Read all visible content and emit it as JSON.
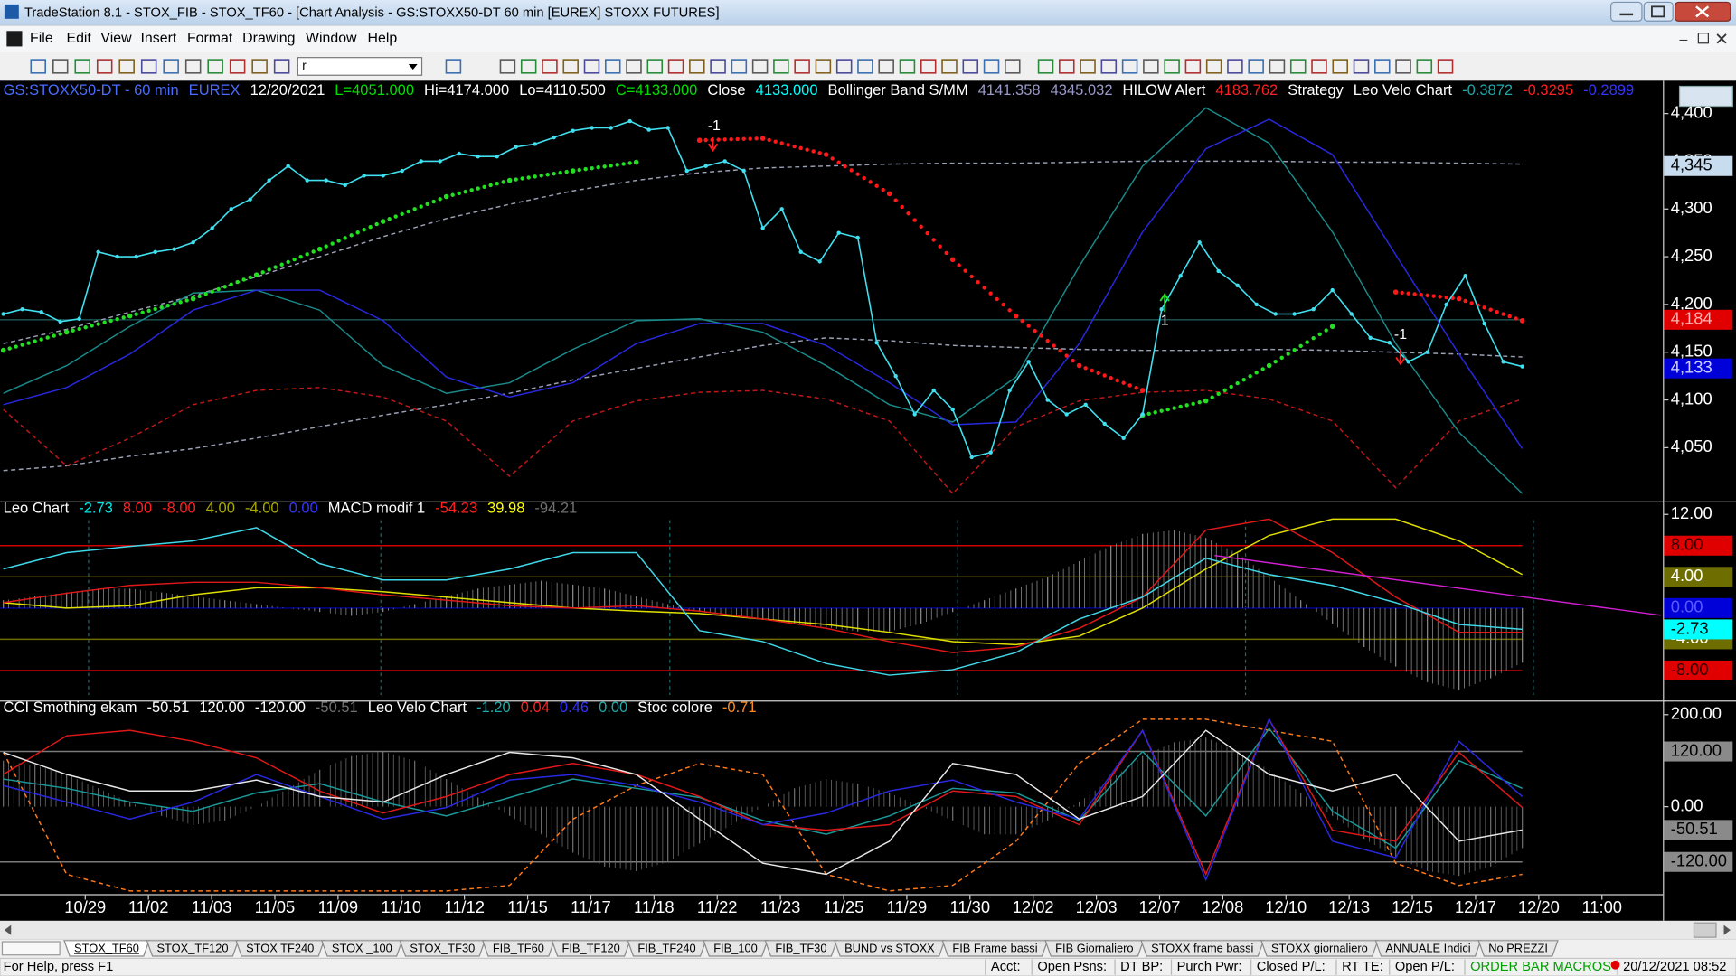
{
  "window": {
    "title": "TradeStation 8.1 - STOX_FIB - STOX_TF60 - [Chart Analysis - GS:STOXX50-DT  60 min  [EUREX] STOXX FUTURES]",
    "menu": [
      "File",
      "Edit",
      "View",
      "Insert",
      "Format",
      "Drawing",
      "Window",
      "Help"
    ],
    "symbol_box": "r"
  },
  "chart_data": [
    {
      "type": "line",
      "header": [
        {
          "text": "GS:STOXX50-DT - 60 min",
          "color": "#4a6cff"
        },
        {
          "text": "EUREX",
          "color": "#4a6cff"
        },
        {
          "text": "12/20/2021",
          "color": "#ffffff"
        },
        {
          "text": "L=4051.000",
          "color": "#00e000"
        },
        {
          "text": "Hi=4174.000",
          "color": "#ffffff"
        },
        {
          "text": "Lo=4110.500",
          "color": "#ffffff"
        },
        {
          "text": "C=4133.000",
          "color": "#00e000"
        },
        {
          "text": "Close",
          "color": "#ffffff"
        },
        {
          "text": "4133.000",
          "color": "#00ffff"
        },
        {
          "text": "Bollinger Band S/MM",
          "color": "#ffffff"
        },
        {
          "text": "4141.358",
          "color": "#9a9ac8"
        },
        {
          "text": "4345.032",
          "color": "#9a9ac8"
        },
        {
          "text": "HILOW Alert",
          "color": "#ffffff"
        },
        {
          "text": "4183.762",
          "color": "#ff2020"
        },
        {
          "text": "Strategy",
          "color": "#ffffff"
        },
        {
          "text": "Leo Velo Chart",
          "color": "#ffffff"
        },
        {
          "text": "-0.3872",
          "color": "#20a8a8"
        },
        {
          "text": "-0.3295",
          "color": "#ff2020"
        },
        {
          "text": "-0.2899",
          "color": "#3434ff"
        }
      ],
      "ylim": [
        3995,
        4432
      ],
      "yticks": [
        {
          "value": 4400,
          "label": "4,400"
        },
        {
          "value": 4350,
          "label": "4,350"
        },
        {
          "value": 4300,
          "label": "4,300"
        },
        {
          "value": 4250,
          "label": "4,250"
        },
        {
          "value": 4200,
          "label": "4,200"
        },
        {
          "value": 4150,
          "label": "4,150"
        },
        {
          "value": 4100,
          "label": "4,100"
        },
        {
          "value": 4050,
          "label": "4,050"
        }
      ],
      "markers": [
        {
          "value": 4345,
          "label": "4,345",
          "color": "#c8dcf0",
          "text_color": "#000000"
        },
        {
          "value": 4184,
          "label": "4,184",
          "color": "#e00000",
          "text_color": "#ffb0b0",
          "line_color": "#1e5a5a"
        },
        {
          "value": 4133,
          "label": "4,133",
          "color": "#0000d8",
          "text_color": "#d0d0ff"
        }
      ],
      "annotations": [
        "-1",
        "1",
        "-1"
      ],
      "series": [
        {
          "color": "#9aa0b4",
          "style": "dashed",
          "values": [
            4159,
            4174,
            4192,
            4209,
            4229,
            4250,
            4271,
            4290,
            4305,
            4319,
            4330,
            4338,
            4343,
            4345,
            4347,
            4348,
            4348,
            4349,
            4350,
            4350,
            4350,
            4349,
            4349,
            4348,
            4347
          ]
        },
        {
          "color": "#9aa0b4",
          "style": "dashed",
          "values": [
            4026,
            4031,
            4041,
            4049,
            4060,
            4072,
            4084,
            4095,
            4107,
            4121,
            4133,
            4145,
            4157,
            4165,
            4162,
            4157,
            4155,
            4153,
            4152,
            4152,
            4153,
            4152,
            4150,
            4148,
            4145
          ]
        },
        {
          "color": "#c01818",
          "style": "dashed",
          "values": [
            4090,
            4031,
            4060,
            4095,
            4110,
            4113,
            4103,
            4078,
            4020,
            4078,
            4099,
            4108,
            4110,
            4101,
            4078,
            4002,
            4072,
            4099,
            4108,
            4110,
            4101,
            4078,
            4008,
            4078,
            4101
          ]
        },
        {
          "color": "#1a8a8a",
          "style": "line",
          "values": [
            4107,
            4136,
            4177,
            4212,
            4215,
            4194,
            4136,
            4107,
            4118,
            4153,
            4183,
            4185,
            4171,
            4136,
            4095,
            4077,
            4124,
            4240,
            4345,
            4406,
            4369,
            4276,
            4159,
            4066,
            4002
          ]
        },
        {
          "color": "#2828e0",
          "style": "line",
          "values": [
            4095,
            4113,
            4148,
            4194,
            4215,
            4215,
            4183,
            4124,
            4103,
            4118,
            4159,
            4180,
            4180,
            4157,
            4118,
            4074,
            4077,
            4159,
            4276,
            4363,
            4394,
            4357,
            4252,
            4148,
            4049
          ]
        },
        {
          "color": "#20e020",
          "style": "dots",
          "values": [
            4152,
            4171,
            4188,
            4206,
            4231,
            4258,
            4287,
            4313,
            4330,
            4340,
            4349,
            null,
            null,
            null,
            null,
            null,
            null,
            null,
            4084,
            4099,
            4136,
            4177,
            null,
            null,
            null
          ]
        },
        {
          "color": "#ff1818",
          "style": "dots",
          "values": [
            null,
            null,
            null,
            null,
            null,
            null,
            null,
            null,
            null,
            null,
            null,
            4372,
            4374,
            4357,
            4316,
            4247,
            4188,
            4136,
            4110,
            null,
            null,
            null,
            4213,
            4206,
            4183
          ]
        },
        {
          "color": "#40e0f0",
          "style": "line-dots",
          "values": [
            4190,
            4195,
            4192,
            4182,
            4185,
            4255,
            4250,
            4250,
            4255,
            4258,
            4265,
            4280,
            4300,
            4310,
            4330,
            4345,
            4330,
            4330,
            4325,
            4335,
            4335,
            4340,
            4350,
            4350,
            4358,
            4355,
            4355,
            4365,
            4368,
            4375,
            4382,
            4385,
            4385,
            4392,
            4383,
            4385,
            4340,
            4345,
            4350,
            4340,
            4280,
            4300,
            4255,
            4245,
            4275,
            4270,
            4160,
            4125,
            4085,
            4110,
            4090,
            4040,
            4045,
            4110,
            4140,
            4100,
            4085,
            4095,
            4075,
            4060,
            4085,
            4195,
            4230,
            4265,
            4235,
            4220,
            4200,
            4190,
            4190,
            4195,
            4215,
            4190,
            4165,
            4160,
            4140,
            4150,
            4200,
            4230,
            4180,
            4140,
            4135
          ]
        }
      ]
    },
    {
      "type": "line",
      "header": [
        {
          "text": "Leo Chart",
          "color": "#ffffff"
        },
        {
          "text": "-2.73",
          "color": "#00e8e8"
        },
        {
          "text": "8.00",
          "color": "#ff2020"
        },
        {
          "text": "-8.00",
          "color": "#ff2020"
        },
        {
          "text": "4.00",
          "color": "#a8a800"
        },
        {
          "text": "-4.00",
          "color": "#a8a800"
        },
        {
          "text": "0.00",
          "color": "#3434ff"
        },
        {
          "text": "MACD modif 1",
          "color": "#ffffff"
        },
        {
          "text": "-54.23",
          "color": "#ff2020"
        },
        {
          "text": "39.98",
          "color": "#ffff00"
        },
        {
          "text": "-94.21",
          "color": "#707070"
        }
      ],
      "ylim": [
        -11.7,
        13.4
      ],
      "yticks": [
        {
          "value": 12,
          "label": "12.00"
        }
      ],
      "markers": [
        {
          "value": 8,
          "label": "8.00",
          "color": "#e00000",
          "text_color": "#300000",
          "line_color": "#d00000"
        },
        {
          "value": 4,
          "label": "4.00",
          "color": "#6e6e00",
          "text_color": "#ffffff",
          "line_color": "#6e6e00"
        },
        {
          "value": 0,
          "label": "0.00",
          "color": "#0000d8",
          "text_color": "#5a5aff",
          "line_color": "#00008c"
        },
        {
          "value": -4,
          "label": "-4.00",
          "color": "#6e6e00",
          "text_color": "#ffffff",
          "line_color": "#6e6e00"
        },
        {
          "value": -8,
          "label": "-8.00",
          "color": "#e00000",
          "text_color": "#300000",
          "line_color": "#d00000"
        },
        {
          "value": -2.73,
          "label": "-2.73",
          "color": "#00ffff",
          "text_color": "#000000"
        }
      ],
      "series": [
        {
          "color": "#8c8c8c",
          "style": "histogram",
          "values": [
            1,
            1.5,
            2,
            2.5,
            2.5,
            2,
            1.5,
            1,
            0.5,
            0,
            -0.5,
            -1,
            -0.5,
            0.5,
            1.5,
            2.5,
            3,
            3.5,
            3,
            2.5,
            1.5,
            0.5,
            -0.5,
            -1,
            -1.5,
            -2,
            -2.5,
            -3,
            -3,
            -2,
            -0.5,
            1,
            2.5,
            4,
            6,
            8,
            9.5,
            10,
            9,
            7,
            4,
            1,
            -2,
            -5,
            -7.5,
            -9.5,
            -10.5,
            -9,
            -7
          ]
        },
        {
          "color": "#e0e000",
          "style": "line",
          "values": [
            0.7,
            0,
            0.3,
            1.7,
            2.6,
            2.6,
            2.1,
            1.4,
            0.7,
            0,
            -0.4,
            -0.7,
            -1.4,
            -2.1,
            -3.1,
            -4.3,
            -4.7,
            -3.6,
            0,
            5,
            9.3,
            11.4,
            11.4,
            8.6,
            4.3
          ]
        },
        {
          "color": "#e01818",
          "style": "line",
          "values": [
            0.7,
            1.9,
            2.9,
            3.3,
            3.3,
            2.6,
            1.7,
            1,
            0.3,
            0,
            0.3,
            -0.4,
            -1.4,
            -2.6,
            -4.3,
            -5.7,
            -5,
            -2.6,
            1.4,
            10,
            11.4,
            7.1,
            1.4,
            -3.1,
            -3.1
          ]
        },
        {
          "color": "#40d8e8",
          "style": "line",
          "values": [
            5,
            7.1,
            7.9,
            8.6,
            10.3,
            5.7,
            3.6,
            3.6,
            5,
            7.1,
            7.1,
            -2.9,
            -4.3,
            -7.1,
            -8.6,
            -7.9,
            -5.7,
            -1.4,
            1.4,
            6.4,
            4.3,
            2.9,
            0.7,
            -2.1,
            -2.73
          ]
        }
      ]
    },
    {
      "type": "line",
      "header": [
        {
          "text": "CCI Smothing ekam",
          "color": "#ffffff"
        },
        {
          "text": "-50.51",
          "color": "#ffffff"
        },
        {
          "text": "120.00",
          "color": "#ffffff"
        },
        {
          "text": "-120.00",
          "color": "#ffffff"
        },
        {
          "text": "-50.51",
          "color": "#707070"
        },
        {
          "text": "Leo Velo Chart",
          "color": "#ffffff"
        },
        {
          "text": "-1.20",
          "color": "#20a8a8"
        },
        {
          "text": "0.04",
          "color": "#ff2020"
        },
        {
          "text": "0.46",
          "color": "#3434ff"
        },
        {
          "text": "0.00",
          "color": "#20a8a8"
        },
        {
          "text": "Stoc colore",
          "color": "#ffffff"
        },
        {
          "text": "-0.71",
          "color": "#ff8c20"
        }
      ],
      "ylim": [
        -190,
        226
      ],
      "yticks": [
        {
          "value": 200,
          "label": "200.00"
        },
        {
          "value": 0,
          "label": "0.00"
        }
      ],
      "markers": [
        {
          "value": 120,
          "label": "120.00",
          "color": "#8a8a8a",
          "text_color": "#000000",
          "line_color": "#7a7a7a"
        },
        {
          "value": -120,
          "label": "-120.00",
          "color": "#8a8a8a",
          "text_color": "#000000",
          "line_color": "#7a7a7a"
        },
        {
          "value": -50.51,
          "label": "-50.51",
          "color": "#8a8a8a",
          "text_color": "#000000"
        }
      ],
      "series": [
        {
          "color": "#6e6e6e",
          "style": "histogram",
          "values": [
            100,
            90,
            70,
            40,
            10,
            -20,
            -40,
            -30,
            0,
            40,
            80,
            110,
            120,
            100,
            60,
            20,
            -20,
            -60,
            -100,
            -130,
            -140,
            -120,
            -80,
            -40,
            0,
            40,
            60,
            50,
            30,
            0,
            -30,
            -60,
            -60,
            -30,
            10,
            60,
            110,
            140,
            150,
            120,
            80,
            30,
            -20,
            -70,
            -110,
            -140,
            -150,
            -130,
            -90
          ]
        },
        {
          "color": "#ff7a1a",
          "style": "dashed",
          "values": [
            118,
            -147,
            -183,
            -183,
            -183,
            -183,
            -183,
            -183,
            -171,
            -27,
            46,
            94,
            70,
            -147,
            -183,
            -171,
            -75,
            94,
            190,
            190,
            166,
            142,
            -123,
            -171,
            -147
          ]
        },
        {
          "color": "#1a9a9a",
          "style": "line",
          "values": [
            60,
            40,
            10,
            -10,
            30,
            50,
            10,
            -20,
            20,
            60,
            40,
            20,
            -30,
            -60,
            -20,
            40,
            30,
            -30,
            120,
            -20,
            170,
            -10,
            -90,
            100,
            40
          ]
        },
        {
          "color": "#e01818",
          "style": "line",
          "values": [
            70,
            154,
            166,
            142,
            106,
            34,
            -14,
            22,
            70,
            94,
            70,
            22,
            -39,
            -51,
            -39,
            34,
            22,
            -39,
            166,
            -147,
            190,
            -51,
            -75,
            118,
            -2
          ]
        },
        {
          "color": "#2828e0",
          "style": "line",
          "values": [
            46,
            10,
            -27,
            10,
            70,
            22,
            -27,
            -2,
            58,
            70,
            46,
            10,
            -39,
            -14,
            34,
            58,
            10,
            -27,
            166,
            -159,
            190,
            -75,
            -111,
            142,
            22
          ]
        },
        {
          "color": "#e8e8e8",
          "style": "line",
          "values": [
            118,
            70,
            34,
            34,
            58,
            22,
            10,
            70,
            118,
            106,
            70,
            -27,
            -123,
            -147,
            -75,
            94,
            70,
            -27,
            22,
            166,
            70,
            34,
            70,
            -75,
            -50.51
          ]
        }
      ]
    }
  ],
  "time_axis": {
    "labels": [
      "10/29",
      "11/02",
      "11/03",
      "11/05",
      "11/09",
      "11/10",
      "11/12",
      "11/15",
      "11/17",
      "11/18",
      "11/22",
      "11/23",
      "11/25",
      "11/29",
      "11/30",
      "12/02",
      "12/03",
      "12/07",
      "12/08",
      "12/10",
      "12/13",
      "12/15",
      "12/17",
      "12/20",
      "11:00"
    ]
  },
  "tabs": [
    "STOX_TF60",
    "STOX_TF120",
    "STOX TF240",
    "STOX _100",
    "STOX_TF30",
    "FIB_TF60",
    "FIB_TF120",
    "FIB_TF240",
    "FIB_100",
    "FIB_TF30",
    "BUND vs STOXX",
    "FIB Frame bassi",
    "FIB Giornaliero",
    "STOXX frame bassi",
    "STOXX giornaliero",
    "ANNUALE Indici",
    "No PREZZI"
  ],
  "status_bar": [
    "For Help, press F1",
    "Acct:",
    "Open Psns:",
    "DT BP:",
    "Purch Pwr:",
    "Closed P/L:",
    "RT TE:",
    "Open P/L:",
    "ORDER BAR MACROS",
    "20/12/2021 08:52"
  ]
}
